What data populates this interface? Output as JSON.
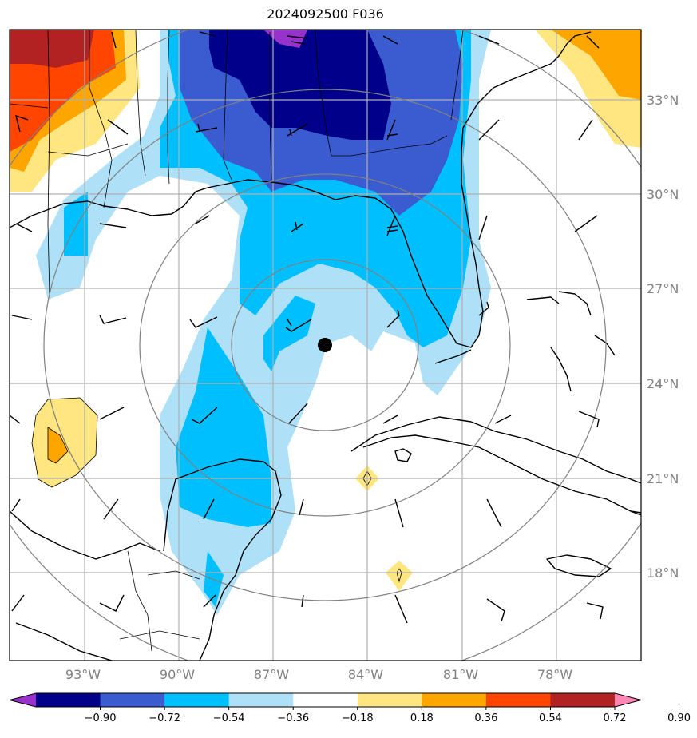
{
  "title": "2024092500 F036",
  "map": {
    "lat_ticks": [
      "33°N",
      "30°N",
      "27°N",
      "24°N",
      "21°N",
      "18°N"
    ],
    "lon_ticks": [
      "93°W",
      "90°W",
      "87°W",
      "84°W",
      "81°W",
      "78°W"
    ],
    "center_marker": "storm-center-dot",
    "range_rings": 4
  },
  "colorbar": {
    "levels": [
      "−0.90",
      "−0.72",
      "−0.54",
      "−0.36",
      "−0.18",
      "0.18",
      "0.36",
      "0.54",
      "0.72",
      "0.90"
    ],
    "colors": [
      "#9932cc",
      "#00008b",
      "#3b5bd0",
      "#00bfff",
      "#aee0f8",
      "#ffffff",
      "#ffe680",
      "#ffa500",
      "#ff4500",
      "#b22222",
      "#ff85b5"
    ],
    "extend": "both"
  },
  "colors": {
    "grid": "#b0b0b0",
    "rings": "#808080",
    "coast": "#000000",
    "purple": "#9932cc",
    "navy": "#00008b",
    "blue": "#3b5bd0",
    "cyan": "#00bfff",
    "light_blue": "#aee0f8",
    "yellow": "#ffe680",
    "orange": "#ffa500",
    "red_orange": "#ff4500",
    "dark_red": "#b22222"
  }
}
